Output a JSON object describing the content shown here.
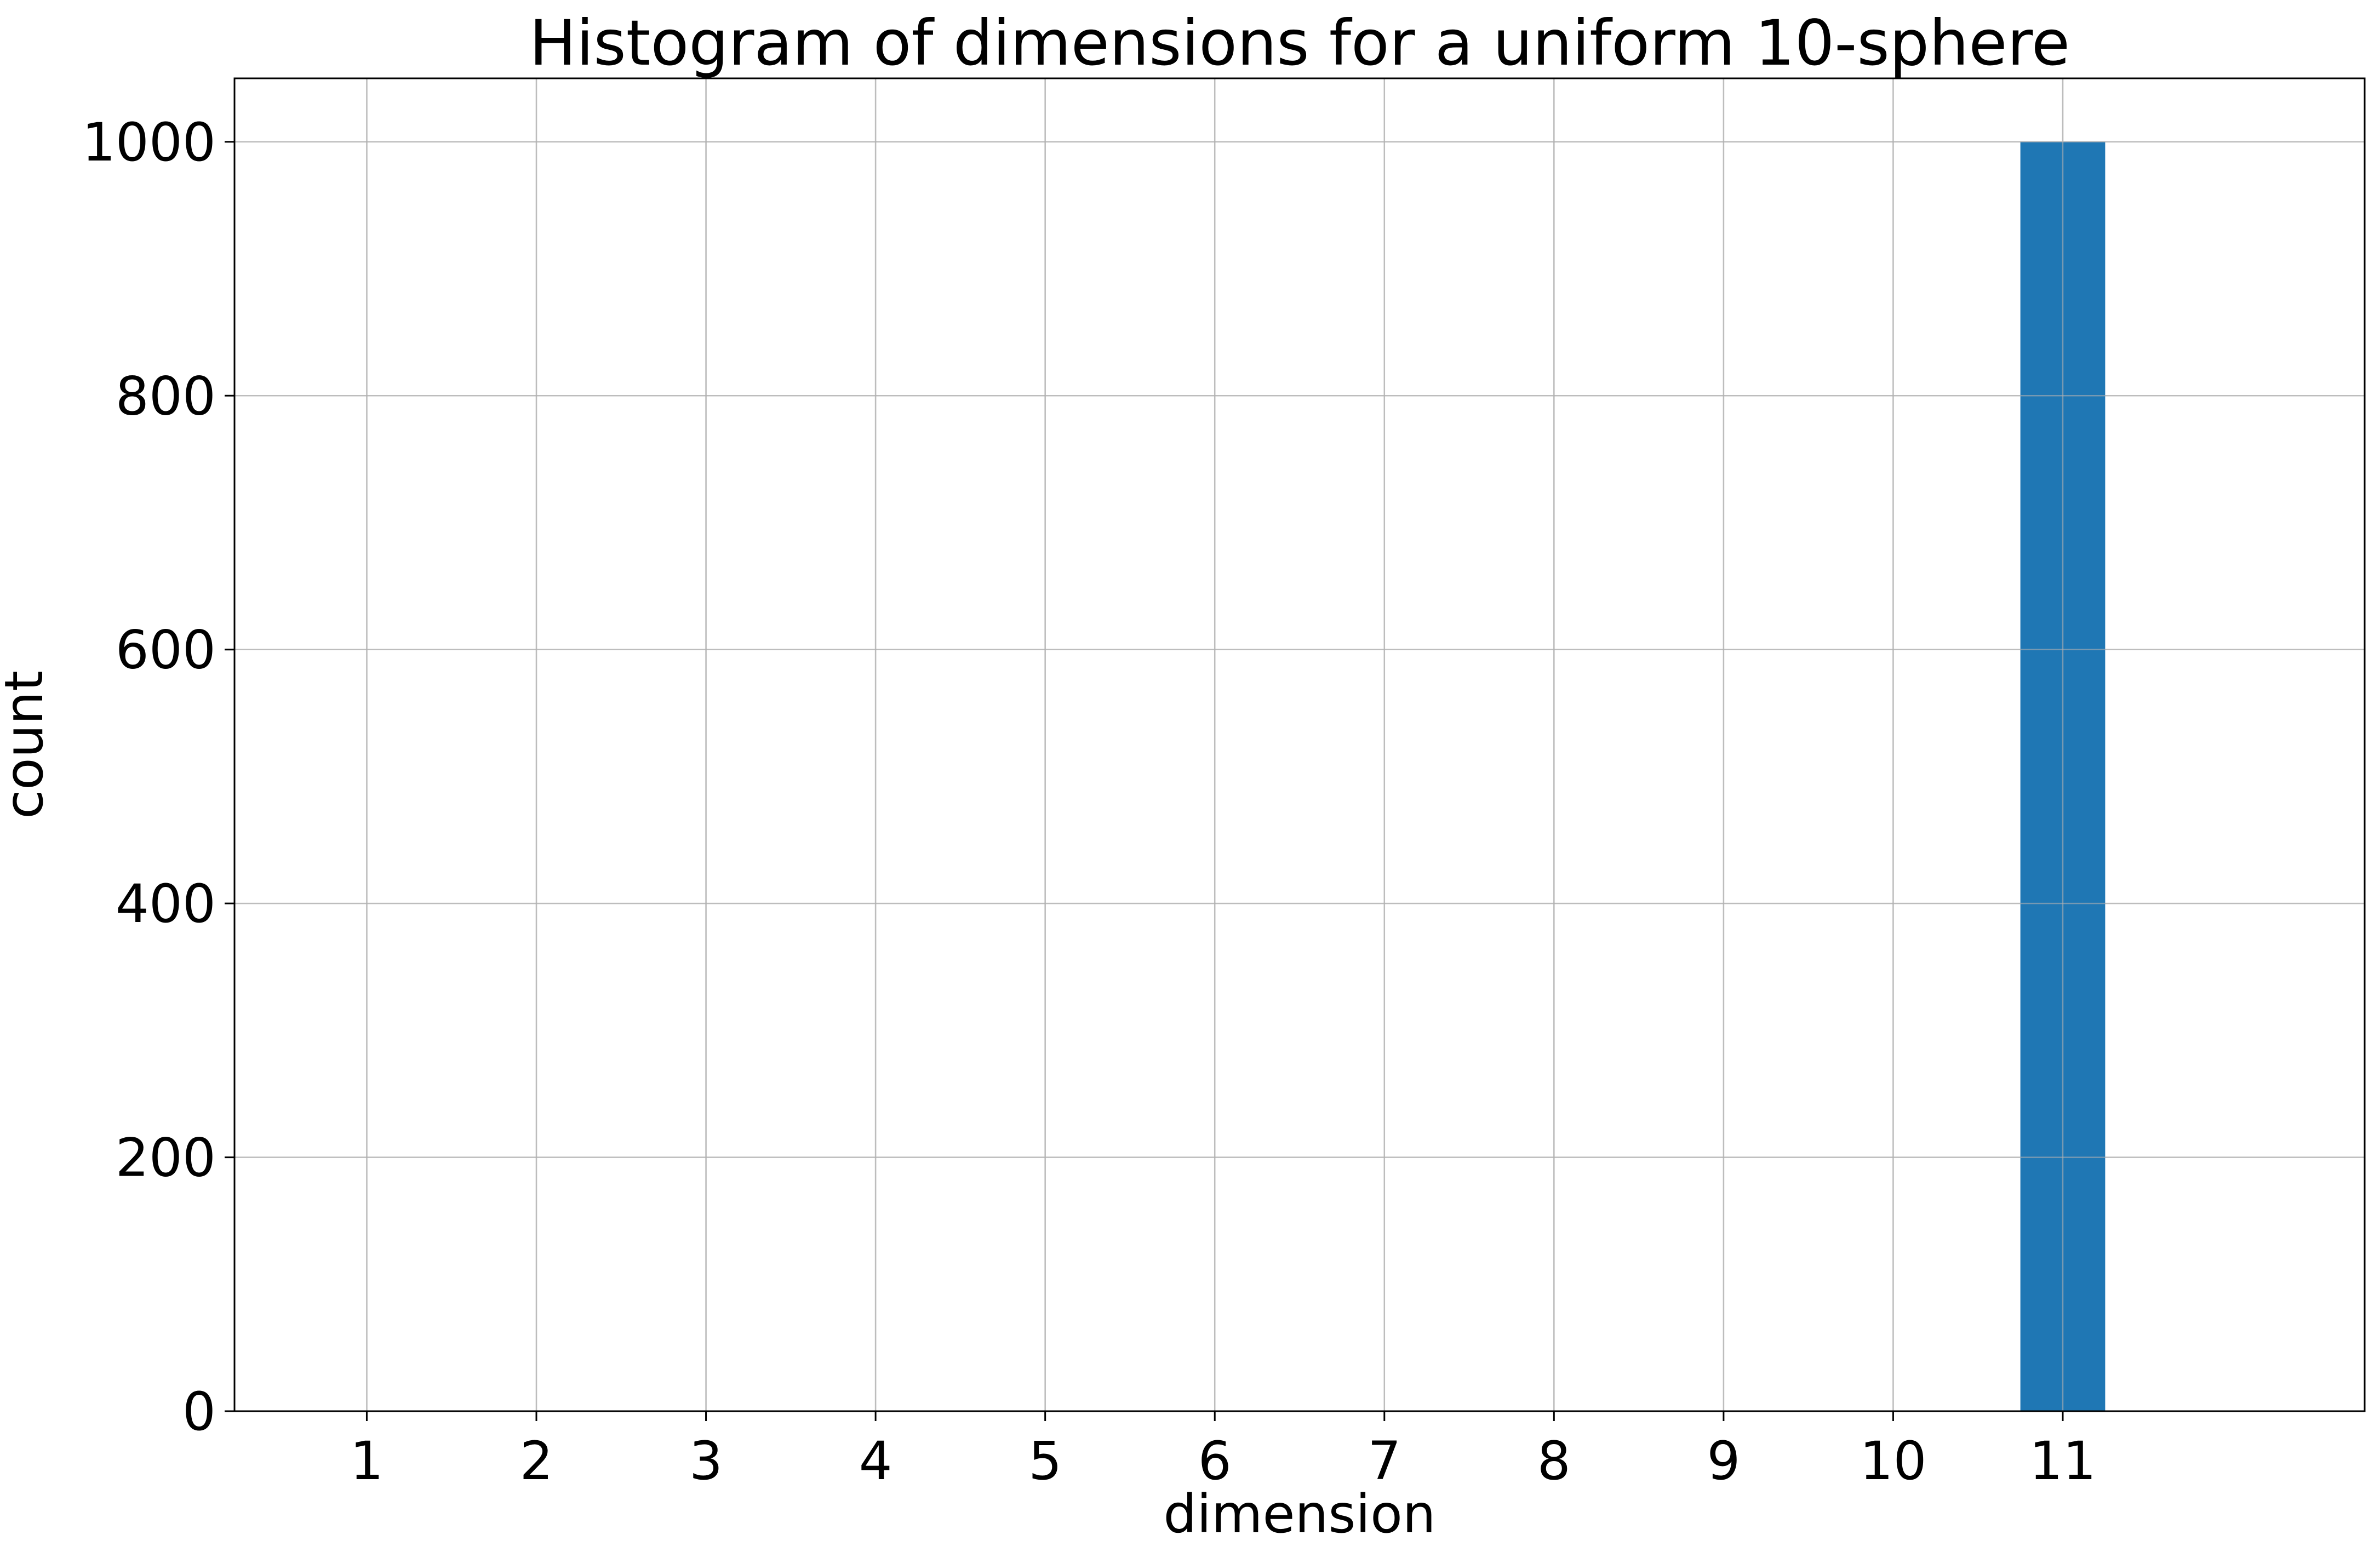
{
  "chart_data": {
    "type": "bar",
    "title": "Histogram of dimensions for a uniform 10-sphere",
    "xlabel": "dimension",
    "ylabel": "count",
    "categories": [
      "1",
      "2",
      "3",
      "4",
      "5",
      "6",
      "7",
      "8",
      "9",
      "10",
      "11"
    ],
    "x": [
      1,
      2,
      3,
      4,
      5,
      6,
      7,
      8,
      9,
      10,
      11
    ],
    "values": [
      0,
      0,
      0,
      0,
      0,
      0,
      0,
      0,
      0,
      0,
      1000
    ],
    "xlim": [
      0.22,
      12.78
    ],
    "ylim": [
      0,
      1050
    ],
    "yticks": [
      0,
      200,
      400,
      600,
      800,
      1000
    ],
    "grid": true,
    "bar_color": "#1f77b4"
  }
}
